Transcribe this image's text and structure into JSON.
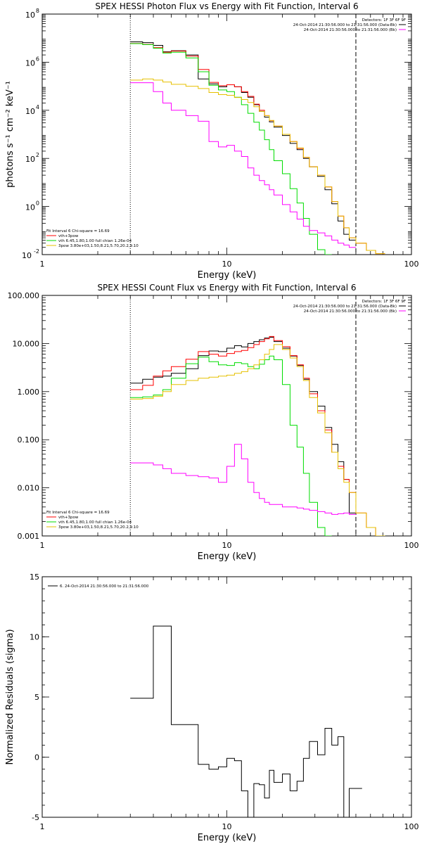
{
  "chart_data": [
    {
      "type": "line",
      "title": "SPEX HESSI Photon Flux vs Energy with Fit Function, Interval 6",
      "xlabel": "Energy (keV)",
      "ylabel": "photons s⁻¹ cm⁻² keV⁻¹",
      "xscale": "log",
      "yscale": "log",
      "xlim": [
        1,
        100
      ],
      "ylim": [
        0.01,
        100000000
      ],
      "x_ticks": [
        {
          "v": 1,
          "label": "1"
        },
        {
          "v": 10,
          "label": "10"
        },
        {
          "v": 100,
          "label": "100"
        }
      ],
      "y_ticks": [
        {
          "v": 0.01,
          "base": "10",
          "exp": "-2"
        },
        {
          "v": 1,
          "base": "10",
          "exp": "0"
        },
        {
          "v": 100,
          "base": "10",
          "exp": "2"
        },
        {
          "v": 10000,
          "base": "10",
          "exp": "4"
        },
        {
          "v": 1000000,
          "base": "10",
          "exp": "6"
        },
        {
          "v": 100000000,
          "base": "10",
          "exp": "8"
        }
      ],
      "vlines": [
        {
          "x": 3,
          "style": "dotted"
        },
        {
          "x": 50,
          "style": "dashed"
        }
      ],
      "legend_tr": [
        {
          "text": "Detectors: 1F 3F 6F 9F",
          "color": "#000000",
          "line": false
        },
        {
          "text": "24-Oct-2014 21:30:56.000 to 21:31:56.000 (Data-Bk)",
          "color": "#000000",
          "line": true
        },
        {
          "text": "24-Oct-2014 21:30:56.000 to 21:31:56.000 (Bk)",
          "color": "#ff00ff",
          "line": true
        }
      ],
      "legend_bl": [
        {
          "text": "Fit Interval  6    Chi-square = 16.69",
          "color": "#000000",
          "line": false
        },
        {
          "text": "vth+3pow",
          "color": "#ff0000",
          "line": true
        },
        {
          "text": "vth 6.45,1.80,1.00   full chian 1.26e-04",
          "color": "#00dd00",
          "line": true
        },
        {
          "text": "3pow 3.80e+03,1.50,8.21,5.70,20.2,9.10",
          "color": "#e6c000",
          "line": true
        }
      ],
      "series": [
        {
          "color": "#000000",
          "edges": [
            3,
            3.5,
            4,
            4.5,
            5,
            6,
            7,
            8,
            9,
            10,
            11,
            12,
            13,
            14,
            15,
            16,
            17,
            18,
            20,
            22,
            24,
            26,
            28,
            31,
            34,
            37,
            40,
            43,
            46,
            50
          ],
          "values": [
            7000000,
            6500000,
            5000000,
            2700000,
            3000000,
            2000000,
            200000,
            125000,
            95000,
            115000,
            95000,
            55000,
            35000,
            17000,
            9000,
            5200,
            3300,
            2000,
            900,
            420,
            230,
            100,
            45,
            18,
            5,
            1.3,
            0.25,
            0.07,
            0.04
          ]
        },
        {
          "color": "#ff0000",
          "edges": [
            3,
            3.5,
            4,
            4.5,
            5,
            6,
            7,
            8,
            9,
            10,
            11,
            12,
            13,
            14,
            15,
            16,
            17,
            18,
            20,
            22,
            24,
            26,
            28,
            31,
            34,
            37,
            40,
            43,
            46,
            50,
            57,
            64,
            72
          ],
          "values": [
            6000000,
            5500000,
            4000000,
            2600000,
            2900000,
            1800000,
            500000,
            145000,
            105000,
            115000,
            95000,
            60000,
            38000,
            18000,
            10000,
            6000,
            3700,
            2200,
            1000,
            500,
            260,
            110,
            45,
            20,
            6.5,
            1.6,
            0.4,
            0.13,
            0.05,
            0.03,
            0.015,
            0.011
          ]
        },
        {
          "color": "#00dd00",
          "edges": [
            3,
            3.5,
            4,
            4.5,
            5,
            6,
            7,
            8,
            9,
            10,
            11,
            12,
            13,
            14,
            15,
            16,
            17,
            18,
            20,
            22,
            24,
            26,
            28,
            31,
            34,
            37
          ],
          "values": [
            5900000,
            5400000,
            3800000,
            2400000,
            2600000,
            1500000,
            400000,
            110000,
            70000,
            60000,
            35000,
            17000,
            7500,
            3200,
            1500,
            600,
            230,
            80,
            23,
            5.5,
            1.4,
            0.32,
            0.07,
            0.016,
            0.01
          ]
        },
        {
          "color": "#e6c000",
          "edges": [
            3,
            3.5,
            4,
            4.5,
            5,
            6,
            7,
            8,
            9,
            10,
            11,
            12,
            13,
            14,
            15,
            16,
            17,
            18,
            20,
            22,
            24,
            26,
            28,
            31,
            34,
            37,
            40,
            43,
            46,
            50,
            57,
            64,
            72
          ],
          "values": [
            180000,
            200000,
            180000,
            150000,
            120000,
            100000,
            80000,
            55000,
            45000,
            42000,
            34000,
            28000,
            21000,
            14000,
            9000,
            6000,
            3800,
            2200,
            1000,
            500,
            270,
            110,
            45,
            20,
            6.5,
            1.6,
            0.4,
            0.13,
            0.05,
            0.03,
            0.015,
            0.011
          ]
        },
        {
          "color": "#ff00ff",
          "edges": [
            3,
            3.5,
            4,
            4.5,
            5,
            6,
            7,
            8,
            9,
            10,
            11,
            12,
            13,
            14,
            15,
            16,
            17,
            18,
            20,
            22,
            24,
            26,
            28,
            31,
            34,
            37,
            40,
            43,
            46,
            50
          ],
          "values": [
            140000,
            140000,
            60000,
            20000,
            10000,
            6000,
            3500,
            500,
            300,
            350,
            200,
            120,
            40,
            20,
            12,
            8,
            5,
            3,
            1.2,
            0.6,
            0.3,
            0.15,
            0.1,
            0.08,
            0.06,
            0.04,
            0.03,
            0.025,
            0.02
          ]
        }
      ]
    },
    {
      "type": "line",
      "title": "SPEX HESSI Count Flux vs Energy with Fit Function, Interval 6",
      "xlabel": "Energy (keV)",
      "ylabel": "",
      "xscale": "log",
      "yscale": "log",
      "xlim": [
        1,
        100
      ],
      "ylim": [
        0.001,
        100
      ],
      "x_ticks": [
        {
          "v": 1,
          "label": "1"
        },
        {
          "v": 10,
          "label": "10"
        },
        {
          "v": 100,
          "label": "100"
        }
      ],
      "y_ticks": [
        {
          "v": 0.001,
          "label": "0.001"
        },
        {
          "v": 0.01,
          "label": "0.010"
        },
        {
          "v": 0.1,
          "label": "0.100"
        },
        {
          "v": 1,
          "label": "1.000"
        },
        {
          "v": 10,
          "label": "10.000"
        },
        {
          "v": 100,
          "label": "100.000"
        }
      ],
      "vlines": [
        {
          "x": 3,
          "style": "dotted"
        },
        {
          "x": 50,
          "style": "dashed"
        }
      ],
      "legend_tr": [
        {
          "text": "Detectors: 1F 3F 6F 9F",
          "color": "#000000",
          "line": false
        },
        {
          "text": "24-Oct-2014 21:30:56.000 to 21:31:56.000 (Data-Bk)",
          "color": "#000000",
          "line": true
        },
        {
          "text": "24-Oct-2014 21:30:56.000 to 21:31:56.000 (Bk)",
          "color": "#ff00ff",
          "line": true
        }
      ],
      "legend_bl": [
        {
          "text": "Fit Interval  6    Chi-square = 16.69",
          "color": "#000000",
          "line": false
        },
        {
          "text": "vth+3pow",
          "color": "#ff0000",
          "line": true
        },
        {
          "text": "vth 6.45,1.80,1.00   full chian 1.26e-04",
          "color": "#00dd00",
          "line": true
        },
        {
          "text": "3pow 3.80e+03,1.50,8.21,5.70,20.2,9.10",
          "color": "#e6c000",
          "line": true
        }
      ],
      "series": [
        {
          "color": "#000000",
          "edges": [
            3,
            3.5,
            4,
            4.5,
            5,
            6,
            7,
            8,
            9,
            10,
            11,
            12,
            13,
            14,
            15,
            16,
            17,
            18,
            20,
            22,
            24,
            26,
            28,
            31,
            34,
            37,
            40,
            43,
            46,
            50
          ],
          "values": [
            1.5,
            1.8,
            2.0,
            2.1,
            2.4,
            3.0,
            5.6,
            7.0,
            6.8,
            8.0,
            9.0,
            8.5,
            10.0,
            11.0,
            12.0,
            13.0,
            13.5,
            11.0,
            8.0,
            5.5,
            3.5,
            1.8,
            1.0,
            0.5,
            0.18,
            0.08,
            0.035,
            0.015,
            0.003
          ]
        },
        {
          "color": "#ff0000",
          "edges": [
            3,
            3.5,
            4,
            4.5,
            5,
            6,
            7,
            8,
            9,
            10,
            11,
            12,
            13,
            14,
            15,
            16,
            17,
            18,
            20,
            22,
            24,
            26,
            28,
            31,
            34,
            37,
            40,
            43,
            46,
            50,
            57,
            64,
            72
          ],
          "values": [
            1.1,
            1.35,
            2.1,
            2.7,
            3.3,
            4.7,
            6.8,
            6.0,
            5.5,
            6.2,
            6.8,
            7.2,
            8.2,
            9.5,
            11.0,
            12.5,
            14.0,
            11.5,
            8.6,
            5.6,
            3.6,
            1.9,
            0.9,
            0.4,
            0.16,
            0.055,
            0.028,
            0.015,
            0.008,
            0.003,
            0.0015,
            0.001
          ]
        },
        {
          "color": "#00dd00",
          "edges": [
            3,
            3.5,
            4,
            4.5,
            5,
            6,
            7,
            8,
            9,
            10,
            11,
            12,
            13,
            14,
            15,
            16,
            17,
            18,
            20,
            22,
            24,
            26,
            28,
            31,
            34,
            37
          ],
          "values": [
            0.75,
            0.78,
            0.85,
            1.1,
            1.9,
            3.8,
            5.2,
            4.2,
            3.6,
            3.5,
            4.0,
            3.8,
            3.3,
            3.0,
            3.7,
            4.6,
            5.5,
            4.6,
            1.4,
            0.2,
            0.07,
            0.02,
            0.005,
            0.0015,
            0.001
          ]
        },
        {
          "color": "#e6c000",
          "edges": [
            3,
            3.5,
            4,
            4.5,
            5,
            6,
            7,
            8,
            9,
            10,
            11,
            12,
            13,
            14,
            15,
            16,
            17,
            18,
            20,
            22,
            24,
            26,
            28,
            31,
            34,
            37,
            40,
            43,
            46,
            50,
            57,
            64,
            72
          ],
          "values": [
            0.7,
            0.72,
            0.8,
            1.0,
            1.4,
            1.7,
            1.9,
            2.0,
            2.1,
            2.2,
            2.4,
            2.6,
            3.0,
            3.6,
            4.6,
            6.0,
            7.5,
            9.5,
            7.5,
            5.0,
            3.3,
            1.7,
            0.75,
            0.36,
            0.14,
            0.055,
            0.025,
            0.013,
            0.008,
            0.003,
            0.0015,
            0.001
          ]
        },
        {
          "color": "#ff00ff",
          "edges": [
            3,
            3.5,
            4,
            4.5,
            5,
            6,
            7,
            8,
            9,
            10,
            11,
            12,
            13,
            14,
            15,
            16,
            17,
            18,
            20,
            22,
            24,
            26,
            28,
            31,
            34,
            37,
            40,
            43,
            46,
            50
          ],
          "values": [
            0.033,
            0.033,
            0.03,
            0.025,
            0.02,
            0.018,
            0.017,
            0.016,
            0.013,
            0.028,
            0.08,
            0.04,
            0.013,
            0.008,
            0.006,
            0.005,
            0.0045,
            0.0045,
            0.004,
            0.004,
            0.0038,
            0.0036,
            0.0034,
            0.0032,
            0.003,
            0.0028,
            0.0029,
            0.003,
            0.0028
          ]
        }
      ]
    },
    {
      "type": "line",
      "title": "",
      "xlabel": "Energy (keV)",
      "ylabel": "Normalized Residuals (sigma)",
      "xscale": "log",
      "yscale": "linear",
      "xlim": [
        1,
        100
      ],
      "ylim": [
        -5,
        15
      ],
      "x_ticks": [
        {
          "v": 1,
          "label": "1"
        },
        {
          "v": 10,
          "label": "10"
        },
        {
          "v": 100,
          "label": "100"
        }
      ],
      "y_ticks": [
        {
          "v": -5,
          "label": "-5"
        },
        {
          "v": 0,
          "label": "0"
        },
        {
          "v": 5,
          "label": "5"
        },
        {
          "v": 10,
          "label": "10"
        },
        {
          "v": 15,
          "label": "15"
        }
      ],
      "vlines": [],
      "legend_tl": [
        {
          "text": "6. 24-Oct-2014 21:30:56.000 to 21:31:56.000",
          "color": "#000000",
          "line": true
        }
      ],
      "series": [
        {
          "color": "#000000",
          "edges": [
            3,
            3.5,
            4,
            4.5,
            5,
            6,
            7,
            8,
            9,
            10,
            11,
            12,
            13,
            14,
            15,
            16,
            17,
            18,
            20,
            22,
            24,
            26,
            28,
            31,
            34,
            37,
            40,
            43,
            46,
            50,
            54
          ],
          "values": [
            4.9,
            4.9,
            10.9,
            10.9,
            2.7,
            2.7,
            -0.6,
            -1.0,
            -0.8,
            -0.1,
            -0.3,
            -2.8,
            -5.1,
            -2.2,
            -2.3,
            -3.4,
            -1.1,
            -2.1,
            -1.4,
            -2.8,
            -2.0,
            -0.1,
            1.3,
            0.2,
            2.4,
            1.0,
            1.7,
            -5.1,
            -2.6,
            -2.6
          ]
        }
      ]
    }
  ]
}
